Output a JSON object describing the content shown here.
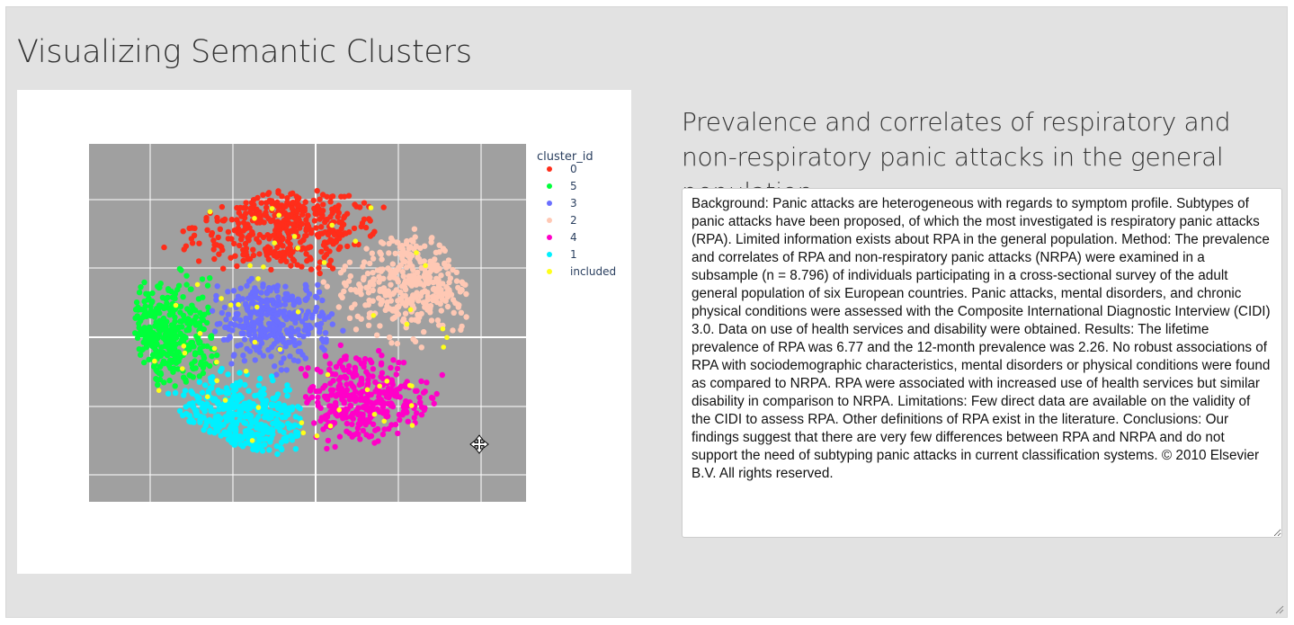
{
  "page": {
    "title": "Visualizing Semantic Clusters"
  },
  "document": {
    "title": "Prevalence and correlates of respiratory and non-respiratory panic attacks in the general population",
    "abstract": "Background: Panic attacks are heterogeneous with regards to symptom profile. Subtypes of panic attacks have been proposed, of which the most investigated is respiratory panic attacks (RPA). Limited information exists about RPA in the general population. Method: The prevalence and correlates of RPA and non-respiratory panic attacks (NRPA) were examined in a subsample (n = 8.796) of individuals participating in a cross-sectional survey of the adult general population of six European countries. Panic attacks, mental disorders, and chronic physical conditions were assessed with the Composite International Diagnostic Interview (CIDI) 3.0. Data on use of health services and disability were obtained. Results: The lifetime prevalence of RPA was 6.77 and the 12-month prevalence was 2.26. No robust associations of RPA with sociodemographic characteristics, mental disorders or physical conditions were found as compared to NRPA. RPA were associated with increased use of health services but similar disability in comparison to NRPA. Limitations: Few direct data are available on the validity of the CIDI to assess RPA. Other definitions of RPA exist in the literature. Conclusions: Our findings suggest that there are very few differences between RPA and NRPA and do not support the need of subtyping panic attacks in current classification systems. © 2010 Elsevier B.V. All rights reserved."
  },
  "chart_data": {
    "type": "scatter",
    "title": "",
    "xlabel": "",
    "ylabel": "",
    "xlim": [
      -2.3,
      3.0
    ],
    "ylim": [
      -2.4,
      2.8
    ],
    "grid": true,
    "tick_labels_visible": false,
    "legend": {
      "title": "cluster_id",
      "position": "top-right"
    },
    "background_color": "#a0a0a0",
    "series": [
      {
        "name": "0",
        "color": "#ff2d1a",
        "center": [
          0.1,
          1.6
        ],
        "spread": [
          0.75,
          0.45
        ],
        "count": 420,
        "region": "top"
      },
      {
        "name": "5",
        "color": "#00ff3a",
        "center": [
          -1.4,
          0.0
        ],
        "spread": [
          0.45,
          0.55
        ],
        "count": 360,
        "region": "left"
      },
      {
        "name": "3",
        "color": "#6b6fff",
        "center": [
          -0.1,
          0.2
        ],
        "spread": [
          0.5,
          0.45
        ],
        "count": 340,
        "region": "middle"
      },
      {
        "name": "2",
        "color": "#ffc8b4",
        "center": [
          1.6,
          0.8
        ],
        "spread": [
          0.6,
          0.5
        ],
        "count": 360,
        "region": "right"
      },
      {
        "name": "4",
        "color": "#ff00c8",
        "center": [
          1.0,
          -0.9
        ],
        "spread": [
          0.55,
          0.45
        ],
        "count": 330,
        "region": "lower-right"
      },
      {
        "name": "1",
        "color": "#00f0ff",
        "center": [
          -0.6,
          -1.2
        ],
        "spread": [
          0.65,
          0.45
        ],
        "count": 380,
        "region": "bottom"
      },
      {
        "name": "included",
        "color": "#ffff1a",
        "count": 60,
        "region": "scattered"
      }
    ]
  },
  "cursor": {
    "icon": "move-cursor-icon"
  }
}
